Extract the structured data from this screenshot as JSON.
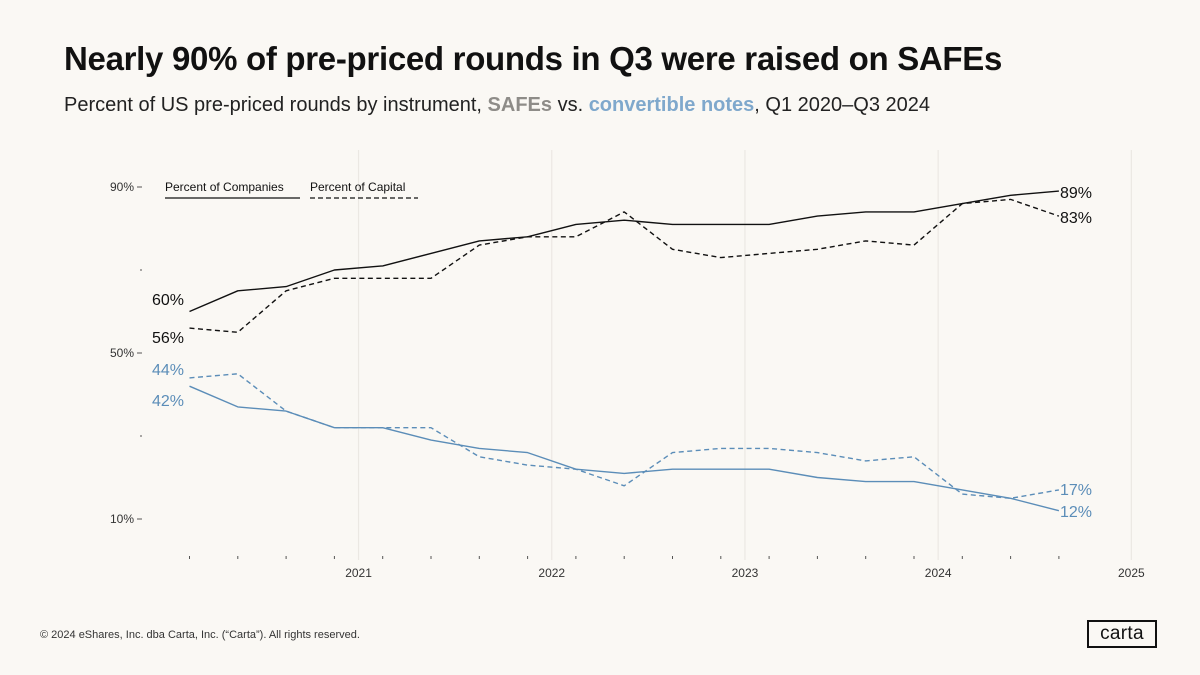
{
  "header": {
    "title": "Nearly 90% of pre-priced rounds in Q3 were raised on SAFEs",
    "subtitle_prefix": "Percent of US pre-priced rounds by instrument,",
    "subtitle_safes": "SAFEs",
    "subtitle_vs": "vs.",
    "subtitle_notes": "convertible notes",
    "subtitle_suffix": ", Q1 2020–Q3 2024"
  },
  "footer": {
    "copyright": "© 2024 eShares, Inc. dba Carta, Inc. (“Carta”). All rights reserved.",
    "logo": "carta"
  },
  "colors": {
    "background": "#faf8f4",
    "safes": "#111111",
    "notes": "#5b8db8",
    "safes_label": "#8e8c88",
    "notes_label": "#7fa8cc",
    "grid": "#ebe8e3"
  },
  "chart_data": {
    "type": "line",
    "title": "Nearly 90% of pre-priced rounds in Q3 were raised on SAFEs",
    "xlabel": "",
    "ylabel": "",
    "ylim": [
      10,
      90
    ],
    "x_ticks": [
      "2021",
      "2022",
      "2023",
      "2024",
      "2025"
    ],
    "y_ticks": [
      "90%",
      "50%",
      "10%"
    ],
    "legend": [
      {
        "label": "Percent of Companies",
        "style": "solid"
      },
      {
        "label": "Percent of Capital",
        "style": "dashed"
      }
    ],
    "legend_position": "top-left",
    "x": [
      "Q1 2020",
      "Q2 2020",
      "Q3 2020",
      "Q4 2020",
      "Q1 2021",
      "Q2 2021",
      "Q3 2021",
      "Q4 2021",
      "Q1 2022",
      "Q2 2022",
      "Q3 2022",
      "Q4 2022",
      "Q1 2023",
      "Q2 2023",
      "Q3 2023",
      "Q4 2023",
      "Q1 2024",
      "Q2 2024",
      "Q3 2024"
    ],
    "series": [
      {
        "name": "SAFEs — Percent of Companies",
        "instrument": "SAFEs",
        "measure": "Percent of Companies",
        "style": "solid",
        "values": [
          60,
          65,
          66,
          70,
          71,
          74,
          77,
          78,
          81,
          82,
          81,
          81,
          81,
          83,
          84,
          84,
          86,
          88,
          89
        ],
        "start_label": "60%",
        "end_label": "89%"
      },
      {
        "name": "SAFEs — Percent of Capital",
        "instrument": "SAFEs",
        "measure": "Percent of Capital",
        "style": "dashed",
        "values": [
          56,
          55,
          65,
          68,
          68,
          68,
          76,
          78,
          78,
          84,
          75,
          73,
          74,
          75,
          77,
          76,
          86,
          87,
          83
        ],
        "start_label": "56%",
        "end_label": "83%"
      },
      {
        "name": "Convertible notes — Percent of Companies",
        "instrument": "convertible notes",
        "measure": "Percent of Companies",
        "style": "solid",
        "values": [
          42,
          37,
          36,
          32,
          32,
          29,
          27,
          26,
          22,
          21,
          22,
          22,
          22,
          20,
          19,
          19,
          17,
          15,
          12
        ],
        "start_label": "42%",
        "end_label": "12%"
      },
      {
        "name": "Convertible notes — Percent of Capital",
        "instrument": "convertible notes",
        "measure": "Percent of Capital",
        "style": "dashed",
        "values": [
          44,
          45,
          36,
          32,
          32,
          32,
          25,
          23,
          22,
          18,
          26,
          27,
          27,
          26,
          24,
          25,
          16,
          15,
          17
        ],
        "start_label": "44%",
        "end_label": "17%"
      }
    ]
  }
}
